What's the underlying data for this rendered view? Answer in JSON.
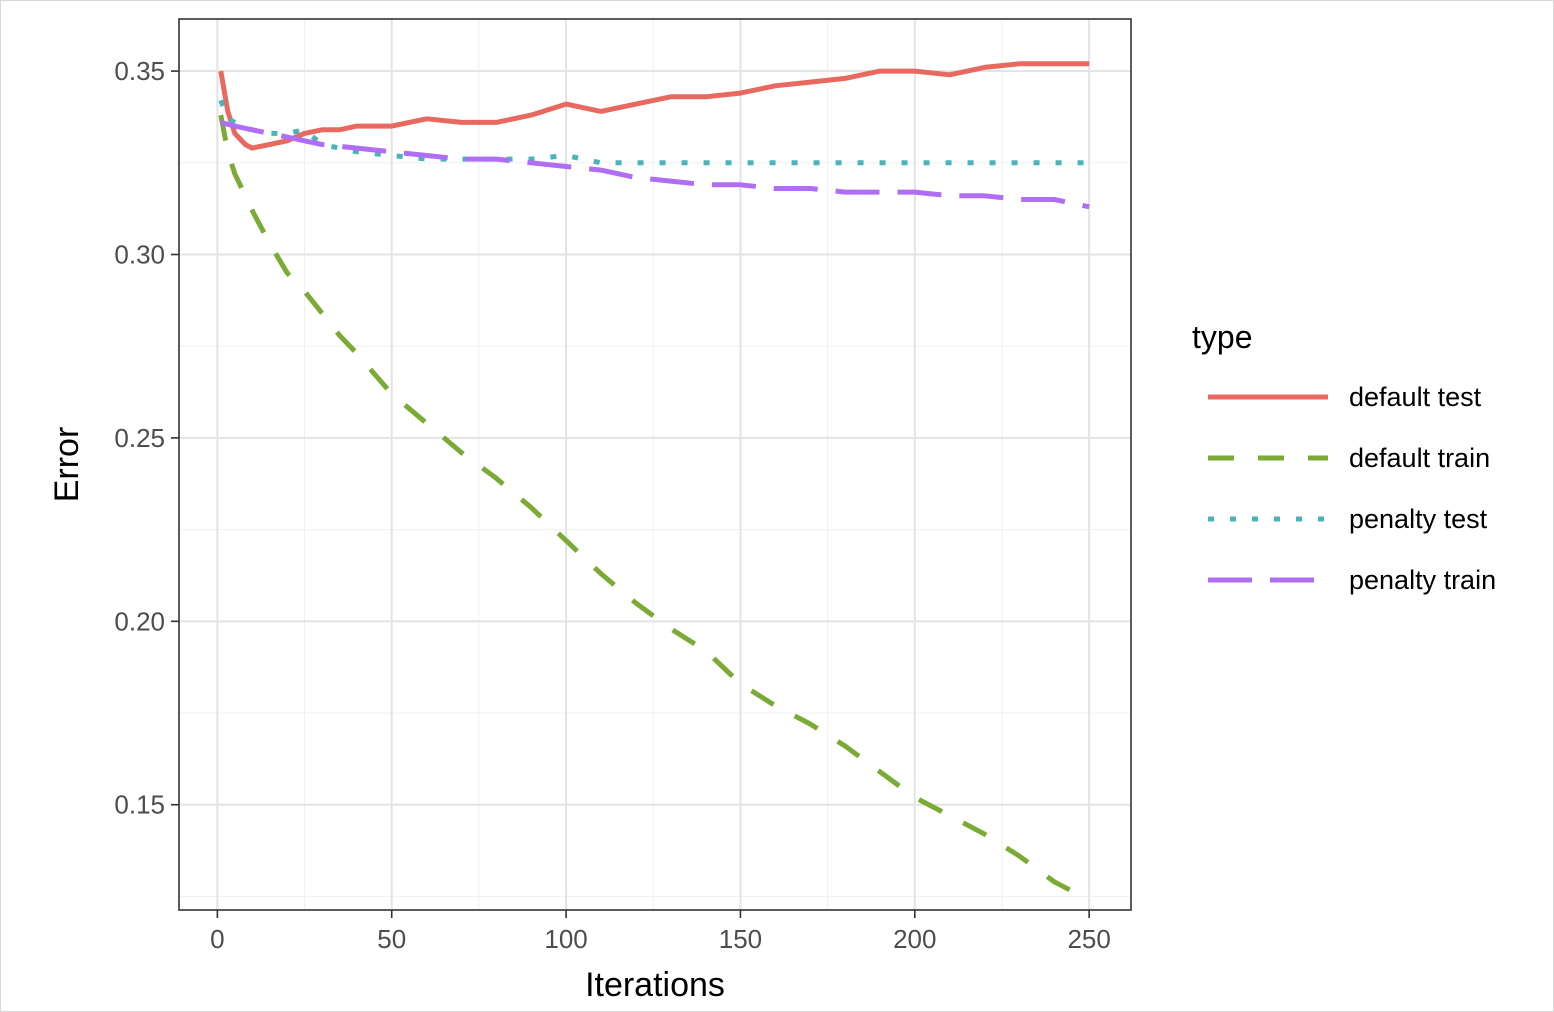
{
  "chart_data": {
    "type": "line",
    "xlabel": "Iterations",
    "ylabel": "Error",
    "xlim": [
      -11,
      262
    ],
    "ylim": [
      0.1213,
      0.3642
    ],
    "x_ticks": [
      0,
      50,
      100,
      150,
      200,
      250
    ],
    "x_tick_labels": [
      "0",
      "50",
      "100",
      "150",
      "200",
      "250"
    ],
    "y_ticks": [
      0.15,
      0.2,
      0.25,
      0.3,
      0.35
    ],
    "y_tick_labels": [
      "0.15",
      "0.20",
      "0.25",
      "0.30",
      "0.35"
    ],
    "grid": true,
    "legend": {
      "title": "type",
      "position": "right"
    },
    "series": [
      {
        "name": "default test",
        "color": "#E7695F",
        "dash": "solid",
        "x": [
          1,
          3,
          5,
          8,
          10,
          15,
          20,
          25,
          30,
          35,
          40,
          50,
          60,
          70,
          80,
          90,
          100,
          110,
          120,
          130,
          140,
          150,
          160,
          170,
          180,
          190,
          200,
          210,
          220,
          230,
          240,
          250
        ],
        "y": [
          0.35,
          0.339,
          0.333,
          0.33,
          0.329,
          0.33,
          0.331,
          0.333,
          0.334,
          0.334,
          0.335,
          0.335,
          0.337,
          0.336,
          0.336,
          0.338,
          0.341,
          0.339,
          0.341,
          0.343,
          0.343,
          0.344,
          0.346,
          0.347,
          0.348,
          0.35,
          0.35,
          0.349,
          0.351,
          0.352,
          0.352,
          0.352
        ]
      },
      {
        "name": "default train",
        "color": "#7CAB35",
        "dash": "dashed",
        "x": [
          1,
          3,
          5,
          8,
          10,
          15,
          20,
          25,
          30,
          35,
          40,
          50,
          60,
          70,
          80,
          90,
          100,
          110,
          120,
          130,
          140,
          150,
          160,
          170,
          180,
          190,
          200,
          210,
          220,
          230,
          240,
          250
        ],
        "y": [
          0.338,
          0.328,
          0.322,
          0.316,
          0.312,
          0.303,
          0.295,
          0.29,
          0.284,
          0.278,
          0.273,
          0.262,
          0.254,
          0.246,
          0.239,
          0.231,
          0.222,
          0.213,
          0.205,
          0.198,
          0.192,
          0.183,
          0.177,
          0.172,
          0.166,
          0.159,
          0.152,
          0.147,
          0.142,
          0.136,
          0.129,
          0.124
        ]
      },
      {
        "name": "penalty test",
        "color": "#4BB4BA",
        "dash": "dotted",
        "x": [
          1,
          3,
          5,
          10,
          15,
          20,
          25,
          30,
          40,
          50,
          60,
          70,
          80,
          90,
          100,
          110,
          120,
          130,
          140,
          150,
          160,
          170,
          180,
          190,
          200,
          210,
          220,
          230,
          240,
          250
        ],
        "y": [
          0.342,
          0.337,
          0.336,
          0.334,
          0.333,
          0.333,
          0.334,
          0.33,
          0.328,
          0.327,
          0.326,
          0.326,
          0.326,
          0.326,
          0.327,
          0.325,
          0.325,
          0.325,
          0.325,
          0.325,
          0.325,
          0.325,
          0.325,
          0.325,
          0.325,
          0.325,
          0.325,
          0.325,
          0.325,
          0.325
        ]
      },
      {
        "name": "penalty train",
        "color": "#B06EF4",
        "dash": "longdash",
        "x": [
          1,
          5,
          10,
          15,
          20,
          25,
          30,
          40,
          50,
          60,
          70,
          80,
          90,
          100,
          110,
          120,
          130,
          140,
          150,
          160,
          170,
          180,
          190,
          200,
          210,
          220,
          230,
          240,
          250
        ],
        "y": [
          0.336,
          0.335,
          0.334,
          0.333,
          0.332,
          0.331,
          0.33,
          0.329,
          0.328,
          0.327,
          0.326,
          0.326,
          0.325,
          0.324,
          0.323,
          0.321,
          0.32,
          0.319,
          0.319,
          0.318,
          0.318,
          0.317,
          0.317,
          0.317,
          0.316,
          0.316,
          0.315,
          0.315,
          0.313
        ]
      }
    ]
  }
}
